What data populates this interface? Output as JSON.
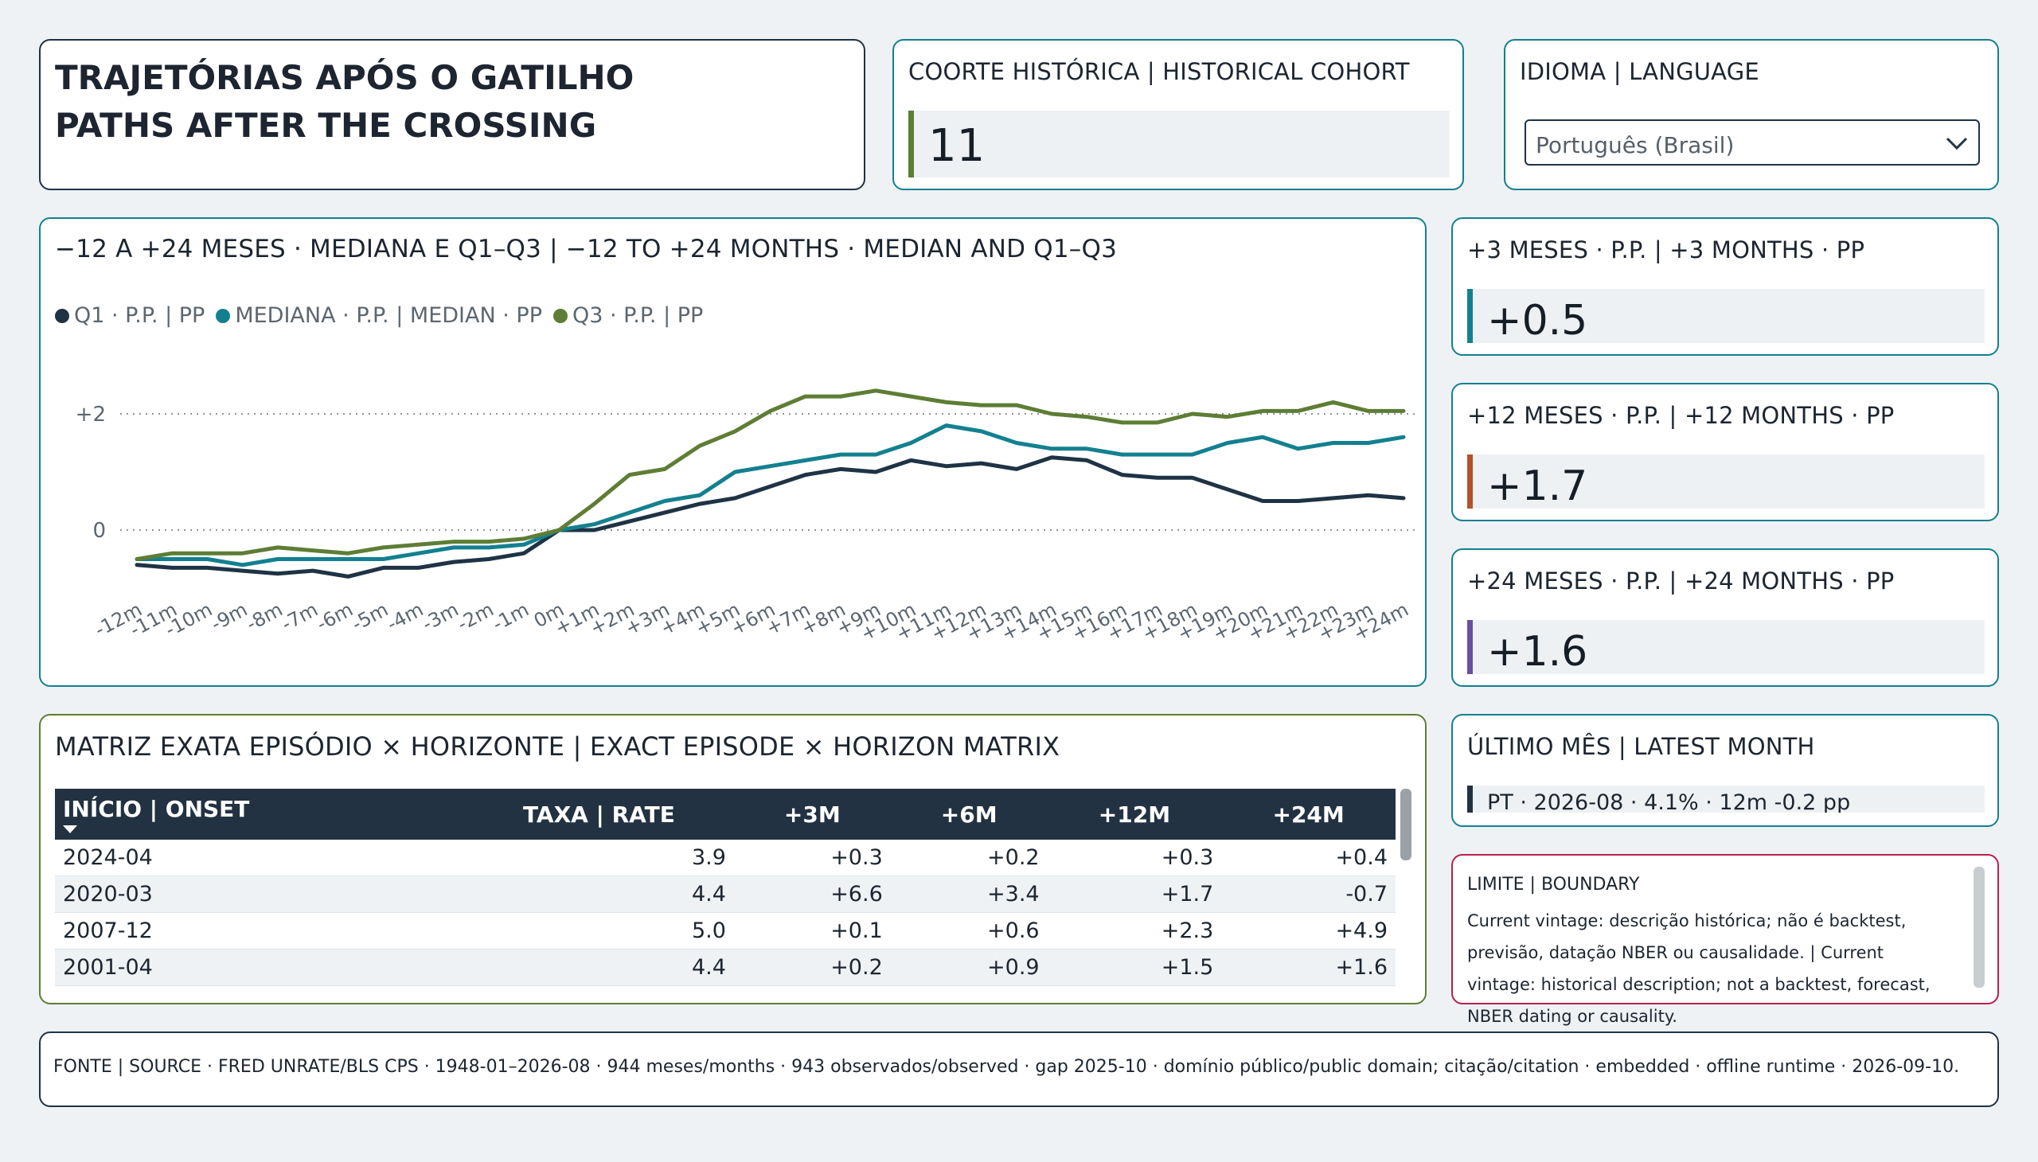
{
  "title": {
    "line1": "TRAJETÓRIAS APÓS O GATILHO",
    "line2": "PATHS AFTER THE CROSSING"
  },
  "cohort": {
    "label": "COORTE HISTÓRICA | HISTORICAL COHORT",
    "value": "11",
    "accent": "#5e7d35"
  },
  "language": {
    "label": "IDIOMA | LANGUAGE",
    "selected": "Português (Brasil)"
  },
  "chart_data": {
    "type": "line",
    "title": "−12 A +24 MESES · MEDIANA E Q1–Q3 | −12 TO +24 MONTHS · MEDIAN AND Q1–Q3",
    "x": [
      "-12m",
      "-11m",
      "-10m",
      "-9m",
      "-8m",
      "-7m",
      "-6m",
      "-5m",
      "-4m",
      "-3m",
      "-2m",
      "-1m",
      "0m",
      "+1m",
      "+2m",
      "+3m",
      "+4m",
      "+5m",
      "+6m",
      "+7m",
      "+8m",
      "+9m",
      "+10m",
      "+11m",
      "+12m",
      "+13m",
      "+14m",
      "+15m",
      "+16m",
      "+17m",
      "+18m",
      "+19m",
      "+20m",
      "+21m",
      "+22m",
      "+23m",
      "+24m"
    ],
    "yticks": [
      {
        "value": 2,
        "label": "+2"
      },
      {
        "value": 0,
        "label": "0"
      }
    ],
    "ylim": [
      -0.9,
      2.6
    ],
    "grid": true,
    "legend_position": "top-left",
    "series": [
      {
        "name": "Q1 · P.P. | PP",
        "color": "#1f3345",
        "values": [
          -0.6,
          -0.65,
          -0.65,
          -0.7,
          -0.75,
          -0.7,
          -0.8,
          -0.65,
          -0.65,
          -0.55,
          -0.5,
          -0.4,
          0.0,
          0.0,
          0.15,
          0.3,
          0.45,
          0.55,
          0.75,
          0.95,
          1.05,
          1.0,
          1.2,
          1.1,
          1.15,
          1.05,
          1.25,
          1.2,
          0.95,
          0.9,
          0.9,
          0.7,
          0.5,
          0.5,
          0.55,
          0.6,
          0.55
        ]
      },
      {
        "name": "MEDIANA · P.P. | MEDIAN · PP",
        "color": "#13808f",
        "values": [
          -0.5,
          -0.5,
          -0.5,
          -0.6,
          -0.5,
          -0.5,
          -0.5,
          -0.5,
          -0.4,
          -0.3,
          -0.3,
          -0.25,
          0.0,
          0.1,
          0.3,
          0.5,
          0.6,
          1.0,
          1.1,
          1.2,
          1.3,
          1.3,
          1.5,
          1.8,
          1.7,
          1.5,
          1.4,
          1.4,
          1.3,
          1.3,
          1.3,
          1.5,
          1.6,
          1.4,
          1.5,
          1.5,
          1.6
        ]
      },
      {
        "name": "Q3 · P.P. | PP",
        "color": "#5e7d35",
        "values": [
          -0.5,
          -0.4,
          -0.4,
          -0.4,
          -0.3,
          -0.35,
          -0.4,
          -0.3,
          -0.25,
          -0.2,
          -0.2,
          -0.15,
          0.0,
          0.45,
          0.95,
          1.05,
          1.45,
          1.7,
          2.05,
          2.3,
          2.3,
          2.4,
          2.3,
          2.2,
          2.15,
          2.15,
          2.0,
          1.95,
          1.85,
          1.85,
          2.0,
          1.95,
          2.05,
          2.05,
          2.2,
          2.05,
          2.05
        ]
      }
    ]
  },
  "kpis": [
    {
      "label": "+3 MESES · P.P. | +3 MONTHS · PP",
      "value": "+0.5",
      "accent": "#13808f"
    },
    {
      "label": "+12 MESES · P.P. | +12 MONTHS · PP",
      "value": "+1.7",
      "accent": "#b5512b"
    },
    {
      "label": "+24 MESES · P.P. | +24 MONTHS · PP",
      "value": "+1.6",
      "accent": "#6b4fa0"
    }
  ],
  "matrix": {
    "title": "MATRIZ EXATA EPISÓDIO × HORIZONTE | EXACT EPISODE × HORIZON MATRIX",
    "columns": [
      "INÍCIO | ONSET",
      "TAXA | RATE",
      "+3M",
      "+6M",
      "+12M",
      "+24M"
    ],
    "rows": [
      [
        "2024-04",
        "3.9",
        "+0.3",
        "+0.2",
        "+0.3",
        "+0.4"
      ],
      [
        "2020-03",
        "4.4",
        "+6.6",
        "+3.4",
        "+1.7",
        "-0.7"
      ],
      [
        "2007-12",
        "5.0",
        "+0.1",
        "+0.6",
        "+2.3",
        "+4.9"
      ],
      [
        "2001-04",
        "4.4",
        "+0.2",
        "+0.9",
        "+1.5",
        "+1.6"
      ]
    ]
  },
  "latest": {
    "label": "ÚLTIMO MÊS | LATEST MONTH",
    "value": "PT · 2026-08 · 4.1% · 12m -0.2 pp"
  },
  "boundary": {
    "label": "LIMITE | BOUNDARY",
    "text": "Current vintage: descrição histórica; não é backtest, previsão, datação NBER ou causalidade. | Current vintage: historical description; not a backtest, forecast, NBER dating or causality."
  },
  "footer": {
    "text": "FONTE | SOURCE · FRED UNRATE/BLS CPS · 1948-01–2026-08 · 944 meses/months · 943 observados/observed · gap 2025-10 · domínio público/public domain; citação/citation · embedded · offline runtime · 2026-09-10."
  }
}
